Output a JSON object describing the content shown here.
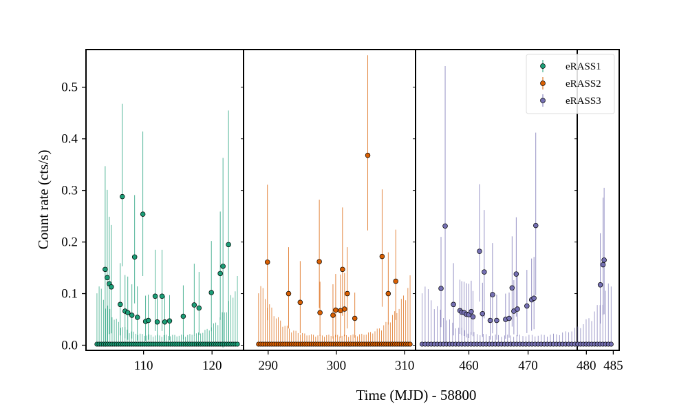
{
  "chart_data": {
    "type": "scatter",
    "xlabel": "Time (MJD) - 58800",
    "ylabel": "Count rate (cts/s)",
    "ylim": [
      -0.01,
      0.573
    ],
    "yticks": [
      0.0,
      0.1,
      0.2,
      0.3,
      0.4,
      0.5
    ],
    "ytick_labels": [
      "0.0",
      "0.1",
      "0.2",
      "0.3",
      "0.4",
      "0.5"
    ],
    "broken_x_axis": true,
    "legend": {
      "position": "top-right",
      "entries": [
        "eRASS1",
        "eRASS2",
        "eRASS3"
      ]
    },
    "colors": {
      "eRASS1": "#1b9e77",
      "eRASS2": "#d95f02",
      "eRASS3": "#7570b3"
    },
    "panels": [
      {
        "xlim": [
          101.6,
          124.6
        ],
        "xticks": [
          110,
          120
        ],
        "xtick_labels": [
          "110",
          "120"
        ]
      },
      {
        "xlim": [
          286.4,
          311.6
        ],
        "xticks": [
          290,
          300,
          310
        ],
        "xtick_labels": [
          "290",
          "300",
          "310"
        ]
      },
      {
        "xlim": [
          451.0,
          478.3
        ],
        "xticks": [
          460,
          470
        ],
        "xtick_labels": [
          "460",
          "470"
        ]
      },
      {
        "xlim": [
          478.3,
          486.1
        ],
        "xticks": [
          480,
          485
        ],
        "xtick_labels": [
          "480",
          "485"
        ]
      }
    ],
    "series": [
      {
        "name": "eRASS1",
        "x_range": [
          103.2,
          123.7
        ],
        "n_points": 66,
        "detections": [
          {
            "x": 104.4,
            "y": 0.147,
            "err": 0.2
          },
          {
            "x": 104.7,
            "y": 0.131,
            "err": 0.17
          },
          {
            "x": 105.0,
            "y": 0.119,
            "err": 0.13
          },
          {
            "x": 105.3,
            "y": 0.113,
            "err": 0.12
          },
          {
            "x": 106.6,
            "y": 0.079,
            "err": 0.08
          },
          {
            "x": 106.9,
            "y": 0.288,
            "err": 0.18
          },
          {
            "x": 107.3,
            "y": 0.066,
            "err": 0.07
          },
          {
            "x": 107.7,
            "y": 0.063,
            "err": 0.07
          },
          {
            "x": 108.3,
            "y": 0.058,
            "err": 0.06
          },
          {
            "x": 108.7,
            "y": 0.171,
            "err": 0.12
          },
          {
            "x": 109.1,
            "y": 0.054,
            "err": 0.06
          },
          {
            "x": 109.9,
            "y": 0.254,
            "err": 0.16
          },
          {
            "x": 110.3,
            "y": 0.046,
            "err": 0.05
          },
          {
            "x": 110.7,
            "y": 0.048,
            "err": 0.05
          },
          {
            "x": 111.7,
            "y": 0.095,
            "err": 0.09
          },
          {
            "x": 112.0,
            "y": 0.045,
            "err": 0.05
          },
          {
            "x": 112.7,
            "y": 0.095,
            "err": 0.09
          },
          {
            "x": 113.1,
            "y": 0.045,
            "err": 0.05
          },
          {
            "x": 113.8,
            "y": 0.047,
            "err": 0.05
          },
          {
            "x": 115.8,
            "y": 0.056,
            "err": 0.06
          },
          {
            "x": 117.4,
            "y": 0.078,
            "err": 0.08
          },
          {
            "x": 118.1,
            "y": 0.072,
            "err": 0.07
          },
          {
            "x": 119.9,
            "y": 0.102,
            "err": 0.1
          },
          {
            "x": 121.2,
            "y": 0.139,
            "err": 0.12
          },
          {
            "x": 121.6,
            "y": 0.153,
            "err": 0.21
          },
          {
            "x": 122.4,
            "y": 0.195,
            "err": 0.26
          }
        ]
      },
      {
        "name": "eRASS2",
        "x_range": [
          288.6,
          310.8
        ],
        "n_points": 70,
        "detections": [
          {
            "x": 289.9,
            "y": 0.161,
            "err": 0.15
          },
          {
            "x": 293.0,
            "y": 0.1,
            "err": 0.09
          },
          {
            "x": 294.7,
            "y": 0.083,
            "err": 0.08
          },
          {
            "x": 297.5,
            "y": 0.162,
            "err": 0.12
          },
          {
            "x": 297.6,
            "y": 0.063,
            "err": 0.06
          },
          {
            "x": 299.5,
            "y": 0.058,
            "err": 0.06
          },
          {
            "x": 299.9,
            "y": 0.068,
            "err": 0.07
          },
          {
            "x": 300.6,
            "y": 0.067,
            "err": 0.07
          },
          {
            "x": 300.9,
            "y": 0.147,
            "err": 0.12
          },
          {
            "x": 301.2,
            "y": 0.07,
            "err": 0.07
          },
          {
            "x": 301.6,
            "y": 0.1,
            "err": 0.09
          },
          {
            "x": 302.7,
            "y": 0.052,
            "err": 0.05
          },
          {
            "x": 304.6,
            "y": 0.368,
            "err": 0.194
          },
          {
            "x": 306.7,
            "y": 0.172,
            "err": 0.13
          },
          {
            "x": 307.6,
            "y": 0.1,
            "err": 0.08
          },
          {
            "x": 308.7,
            "y": 0.124,
            "err": 0.1
          }
        ]
      },
      {
        "name": "eRASS3",
        "x_range": [
          452.1,
          484.6
        ],
        "n_points": 64,
        "detections": [
          {
            "x": 455.3,
            "y": 0.11,
            "err": 0.1
          },
          {
            "x": 456.0,
            "y": 0.231,
            "err": 0.31
          },
          {
            "x": 457.4,
            "y": 0.079,
            "err": 0.08
          },
          {
            "x": 458.5,
            "y": 0.067,
            "err": 0.06
          },
          {
            "x": 458.8,
            "y": 0.064,
            "err": 0.06
          },
          {
            "x": 459.2,
            "y": 0.063,
            "err": 0.06
          },
          {
            "x": 459.6,
            "y": 0.06,
            "err": 0.06
          },
          {
            "x": 460.0,
            "y": 0.059,
            "err": 0.06
          },
          {
            "x": 460.4,
            "y": 0.065,
            "err": 0.06
          },
          {
            "x": 460.7,
            "y": 0.055,
            "err": 0.05
          },
          {
            "x": 461.8,
            "y": 0.182,
            "err": 0.13
          },
          {
            "x": 462.3,
            "y": 0.061,
            "err": 0.06
          },
          {
            "x": 462.6,
            "y": 0.142,
            "err": 0.12
          },
          {
            "x": 463.6,
            "y": 0.048,
            "err": 0.05
          },
          {
            "x": 464.0,
            "y": 0.098,
            "err": 0.1
          },
          {
            "x": 464.7,
            "y": 0.048,
            "err": 0.05
          },
          {
            "x": 466.2,
            "y": 0.05,
            "err": 0.05
          },
          {
            "x": 466.8,
            "y": 0.052,
            "err": 0.05
          },
          {
            "x": 467.3,
            "y": 0.111,
            "err": 0.1
          },
          {
            "x": 467.6,
            "y": 0.066,
            "err": 0.06
          },
          {
            "x": 468.0,
            "y": 0.138,
            "err": 0.11
          },
          {
            "x": 468.2,
            "y": 0.07,
            "err": 0.07
          },
          {
            "x": 469.8,
            "y": 0.076,
            "err": 0.07
          },
          {
            "x": 470.6,
            "y": 0.088,
            "err": 0.08
          },
          {
            "x": 471.0,
            "y": 0.091,
            "err": 0.08
          },
          {
            "x": 471.3,
            "y": 0.232,
            "err": 0.18
          },
          {
            "x": 482.6,
            "y": 0.117,
            "err": 0.1
          },
          {
            "x": 483.1,
            "y": 0.156,
            "err": 0.13
          },
          {
            "x": 483.3,
            "y": 0.165,
            "err": 0.14
          }
        ]
      }
    ]
  }
}
